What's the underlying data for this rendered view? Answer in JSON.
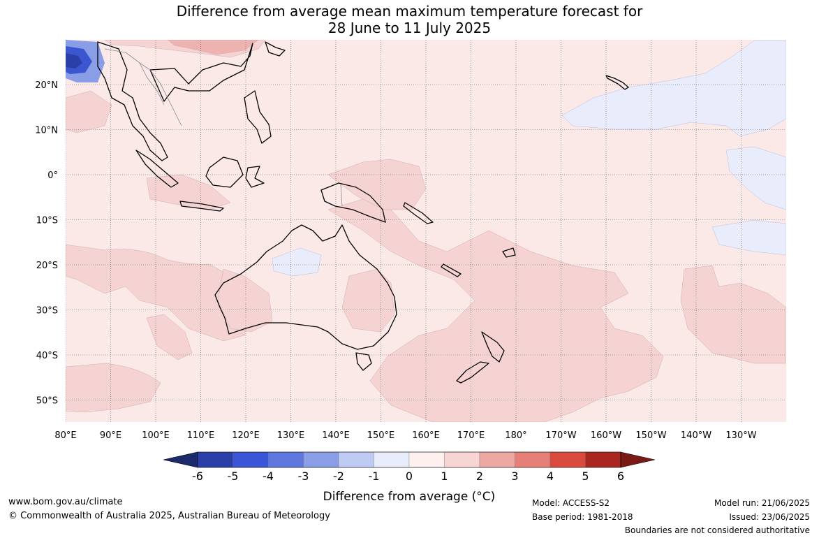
{
  "title": {
    "line1": "Difference from average mean maximum temperature forecast for",
    "line2": "28 June to 11 July 2025"
  },
  "map": {
    "lon_labels": [
      "80°E",
      "90°E",
      "100°E",
      "110°E",
      "120°E",
      "130°E",
      "140°E",
      "150°E",
      "160°E",
      "170°E",
      "180°",
      "170°W",
      "160°W",
      "150°W",
      "140°W",
      "130°W"
    ],
    "lat_labels": [
      "20°N",
      "10°N",
      "0°",
      "10°S",
      "20°S",
      "30°S",
      "40°S",
      "50°S"
    ],
    "colors": {
      "ocean_base": "#fbe9e8",
      "warm_1_2": "#f5d3d2",
      "warm_2_3": "#eeb3b0",
      "cool_0_1": "#e8ecfb",
      "cool_strong": "#3a57d0",
      "coast": "#000000",
      "grid": "#555555"
    }
  },
  "colorbar": {
    "tick_labels": [
      "-6",
      "-5",
      "-4",
      "-3",
      "-2",
      "-1",
      "0",
      "1",
      "2",
      "3",
      "4",
      "5",
      "6"
    ],
    "label": "Difference from average (°C)",
    "colors": [
      "#1a2a6b",
      "#2a3fa8",
      "#3a55d8",
      "#5e78e0",
      "#8a9ee8",
      "#c0cbf3",
      "#e9edfb",
      "#fdf0ee",
      "#f6d5d3",
      "#eea8a3",
      "#e57f78",
      "#da4a3e",
      "#a9271f",
      "#7a1a14"
    ]
  },
  "footer": {
    "url": "www.bom.gov.au/climate",
    "copyright": "© Commonwealth of Australia 2025, Australian Bureau of Meteorology",
    "model": "Model: ACCESS-S2",
    "base_period": "Base period: 1981-2018",
    "model_run": "Model run: 21/06/2025",
    "issued": "Issued: 23/06/2025",
    "disclaimer": "Boundaries are not considered authoritative"
  }
}
